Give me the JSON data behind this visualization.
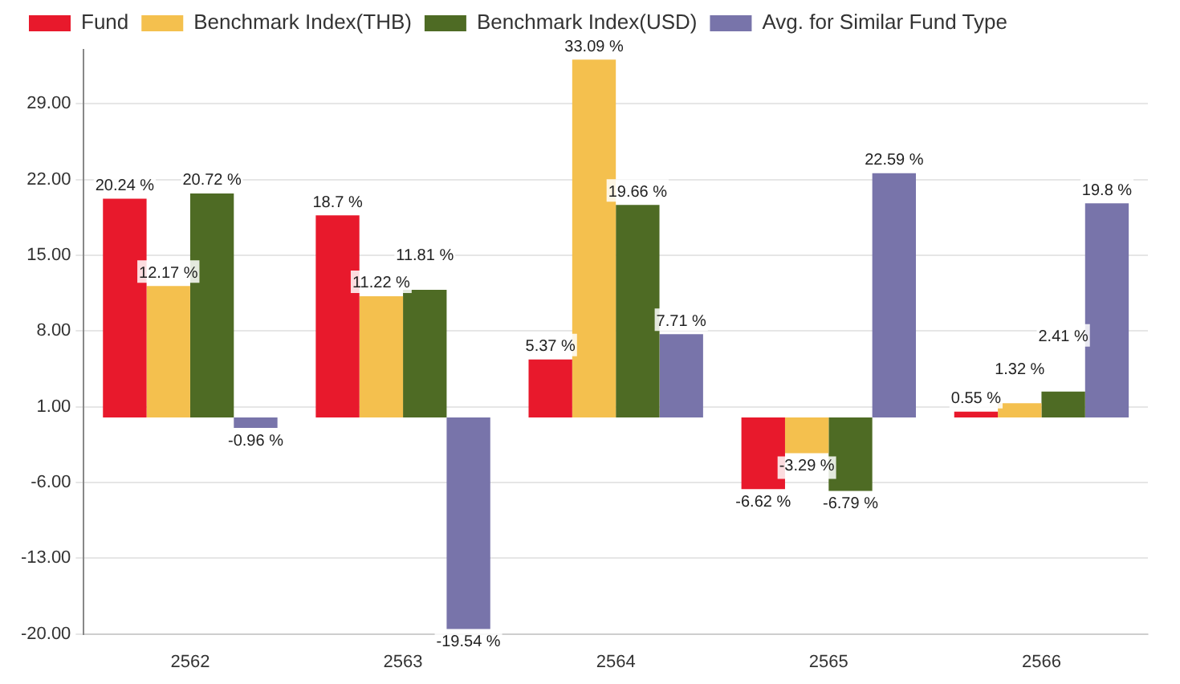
{
  "chart_data": {
    "type": "bar",
    "categories": [
      "2562",
      "2563",
      "2564",
      "2565",
      "2566"
    ],
    "series": [
      {
        "name": "Fund",
        "color": "#e8192c",
        "values": [
          20.24,
          18.7,
          5.37,
          -6.62,
          0.55
        ],
        "value_labels": [
          "20.24 %",
          "18.7 %",
          "5.37 %",
          "-6.62 %",
          "0.55 %"
        ]
      },
      {
        "name": "Benchmark Index(THB)",
        "color": "#f4c04e",
        "values": [
          12.17,
          11.22,
          33.09,
          -3.29,
          1.32
        ],
        "value_labels": [
          "12.17 %",
          "11.22 %",
          "33.09 %",
          "-3.29 %",
          "1.32 %"
        ]
      },
      {
        "name": "Benchmark Index(USD)",
        "color": "#4e6b24",
        "values": [
          20.72,
          11.81,
          19.66,
          -6.79,
          2.41
        ],
        "value_labels": [
          "20.72 %",
          "11.81 %",
          "19.66 %",
          "-6.79 %",
          "2.41 %"
        ]
      },
      {
        "name": "Avg. for Similar Fund Type",
        "color": "#7874aa",
        "values": [
          -0.96,
          -19.54,
          7.71,
          22.59,
          19.8
        ],
        "value_labels": [
          "-0.96 %",
          "-19.54 %",
          "7.71 %",
          "22.59 %",
          "19.8 %"
        ]
      }
    ],
    "ylim": [
      -20,
      34
    ],
    "yticks": [
      {
        "value": -20,
        "label": "-20.00"
      },
      {
        "value": -13,
        "label": "-13.00"
      },
      {
        "value": -6,
        "label": "-6.00"
      },
      {
        "value": 1,
        "label": "1.00"
      },
      {
        "value": 8,
        "label": "8.00"
      },
      {
        "value": 15,
        "label": "15.00"
      },
      {
        "value": 22,
        "label": "22.00"
      },
      {
        "value": 29,
        "label": "29.00"
      }
    ],
    "grid": "y",
    "legend": "top left"
  }
}
